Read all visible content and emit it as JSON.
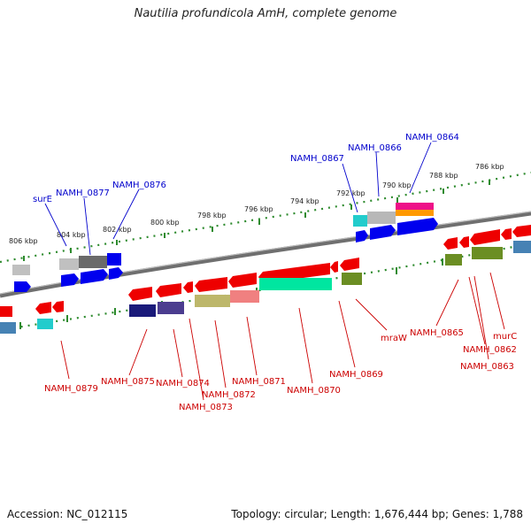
{
  "title": "Nautilia profundicola AmH, complete genome",
  "accession": "Accession: NC_012115",
  "summary": "Topology: circular; Length: 1,676,444 bp; Genes: 1,788",
  "scale_labels": [
    {
      "text": "806 kbp"
    },
    {
      "text": "804 kbp"
    },
    {
      "text": "802 kbp"
    },
    {
      "text": "800 kbp"
    },
    {
      "text": "798 kbp"
    },
    {
      "text": "796 kbp"
    },
    {
      "text": "794 kbp"
    },
    {
      "text": "792 kbp"
    },
    {
      "text": "790 kbp"
    },
    {
      "text": "788 kbp"
    },
    {
      "text": "786 kbp"
    }
  ],
  "forward_genes": [
    {
      "name": "surE",
      "color": "#0000cc"
    },
    {
      "name": "NAMH_0877",
      "color": "#0000cc"
    },
    {
      "name": "NAMH_0876",
      "color": "#0000cc"
    },
    {
      "name": "NAMH_0867",
      "color": "#0000cc"
    },
    {
      "name": "NAMH_0866",
      "color": "#0000cc"
    },
    {
      "name": "NAMH_0864",
      "color": "#0000cc"
    }
  ],
  "reverse_genes": [
    {
      "name": "NAMH_0879",
      "color": "#cc0000"
    },
    {
      "name": "NAMH_0875",
      "color": "#cc0000"
    },
    {
      "name": "NAMH_0874",
      "color": "#cc0000"
    },
    {
      "name": "NAMH_0873",
      "color": "#cc0000"
    },
    {
      "name": "NAMH_0872",
      "color": "#cc0000"
    },
    {
      "name": "NAMH_0871",
      "color": "#cc0000"
    },
    {
      "name": "NAMH_0870",
      "color": "#cc0000"
    },
    {
      "name": "NAMH_0869",
      "color": "#cc0000"
    },
    {
      "name": "mraW",
      "color": "#cc0000"
    },
    {
      "name": "NAMH_0865",
      "color": "#cc0000"
    },
    {
      "name": "murC",
      "color": "#cc0000"
    },
    {
      "name": "NAMH_0862",
      "color": "#cc0000"
    },
    {
      "name": "NAMH_0863",
      "color": "#cc0000"
    }
  ],
  "colors": {
    "backbone": "#777777",
    "tick": "#2e8b2e",
    "gene_red": "#ee0000",
    "gene_blue": "#0000ee"
  }
}
